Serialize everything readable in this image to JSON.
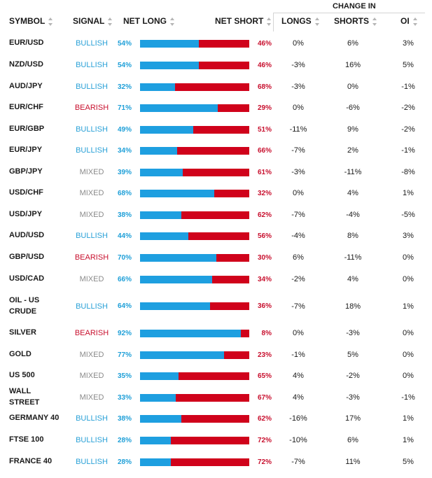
{
  "header": {
    "change_in": "CHANGE IN",
    "symbol": "SYMBOL",
    "signal": "SIGNAL",
    "net_long": "NET LONG",
    "net_short": "NET SHORT",
    "longs": "LONGS",
    "shorts": "SHORTS",
    "oi": "OI"
  },
  "colors": {
    "long_bar": "#1e9fe0",
    "short_bar": "#d0021b",
    "bullish": "#2aa1d7",
    "bearish": "#c8102e",
    "mixed": "#8a8a8a"
  },
  "rows": [
    {
      "symbol": "EUR/USD",
      "signal": "BULLISH",
      "long": "54%",
      "long_value": 54,
      "short": "46%",
      "longs": "0%",
      "shorts": "6%",
      "oi": "3%"
    },
    {
      "symbol": "NZD/USD",
      "signal": "BULLISH",
      "long": "54%",
      "long_value": 54,
      "short": "46%",
      "longs": "-3%",
      "shorts": "16%",
      "oi": "5%"
    },
    {
      "symbol": "AUD/JPY",
      "signal": "BULLISH",
      "long": "32%",
      "long_value": 32,
      "short": "68%",
      "longs": "-3%",
      "shorts": "0%",
      "oi": "-1%"
    },
    {
      "symbol": "EUR/CHF",
      "signal": "BEARISH",
      "long": "71%",
      "long_value": 71,
      "short": "29%",
      "longs": "0%",
      "shorts": "-6%",
      "oi": "-2%"
    },
    {
      "symbol": "EUR/GBP",
      "signal": "BULLISH",
      "long": "49%",
      "long_value": 49,
      "short": "51%",
      "longs": "-11%",
      "shorts": "9%",
      "oi": "-2%"
    },
    {
      "symbol": "EUR/JPY",
      "signal": "BULLISH",
      "long": "34%",
      "long_value": 34,
      "short": "66%",
      "longs": "-7%",
      "shorts": "2%",
      "oi": "-1%"
    },
    {
      "symbol": "GBP/JPY",
      "signal": "MIXED",
      "long": "39%",
      "long_value": 39,
      "short": "61%",
      "longs": "-3%",
      "shorts": "-11%",
      "oi": "-8%"
    },
    {
      "symbol": "USD/CHF",
      "signal": "MIXED",
      "long": "68%",
      "long_value": 68,
      "short": "32%",
      "longs": "0%",
      "shorts": "4%",
      "oi": "1%"
    },
    {
      "symbol": "USD/JPY",
      "signal": "MIXED",
      "long": "38%",
      "long_value": 38,
      "short": "62%",
      "longs": "-7%",
      "shorts": "-4%",
      "oi": "-5%"
    },
    {
      "symbol": "AUD/USD",
      "signal": "BULLISH",
      "long": "44%",
      "long_value": 44,
      "short": "56%",
      "longs": "-4%",
      "shorts": "8%",
      "oi": "3%"
    },
    {
      "symbol": "GBP/USD",
      "signal": "BEARISH",
      "long": "70%",
      "long_value": 70,
      "short": "30%",
      "longs": "6%",
      "shorts": "-11%",
      "oi": "0%"
    },
    {
      "symbol": "USD/CAD",
      "signal": "MIXED",
      "long": "66%",
      "long_value": 66,
      "short": "34%",
      "longs": "-2%",
      "shorts": "4%",
      "oi": "0%"
    },
    {
      "symbol": "OIL - US CRUDE",
      "signal": "BULLISH",
      "long": "64%",
      "long_value": 64,
      "short": "36%",
      "longs": "-7%",
      "shorts": "18%",
      "oi": "1%"
    },
    {
      "symbol": "SILVER",
      "signal": "BEARISH",
      "long": "92%",
      "long_value": 92,
      "short": "8%",
      "longs": "0%",
      "shorts": "-3%",
      "oi": "0%"
    },
    {
      "symbol": "GOLD",
      "signal": "MIXED",
      "long": "77%",
      "long_value": 77,
      "short": "23%",
      "longs": "-1%",
      "shorts": "5%",
      "oi": "0%"
    },
    {
      "symbol": "US 500",
      "signal": "MIXED",
      "long": "35%",
      "long_value": 35,
      "short": "65%",
      "longs": "4%",
      "shorts": "-2%",
      "oi": "0%"
    },
    {
      "symbol": "WALL STREET",
      "signal": "MIXED",
      "long": "33%",
      "long_value": 33,
      "short": "67%",
      "longs": "4%",
      "shorts": "-3%",
      "oi": "-1%"
    },
    {
      "symbol": "GERMANY 40",
      "signal": "BULLISH",
      "long": "38%",
      "long_value": 38,
      "short": "62%",
      "longs": "-16%",
      "shorts": "17%",
      "oi": "1%"
    },
    {
      "symbol": "FTSE 100",
      "signal": "BULLISH",
      "long": "28%",
      "long_value": 28,
      "short": "72%",
      "longs": "-10%",
      "shorts": "6%",
      "oi": "1%"
    },
    {
      "symbol": "FRANCE 40",
      "signal": "BULLISH",
      "long": "28%",
      "long_value": 28,
      "short": "72%",
      "longs": "-7%",
      "shorts": "11%",
      "oi": "5%"
    }
  ]
}
